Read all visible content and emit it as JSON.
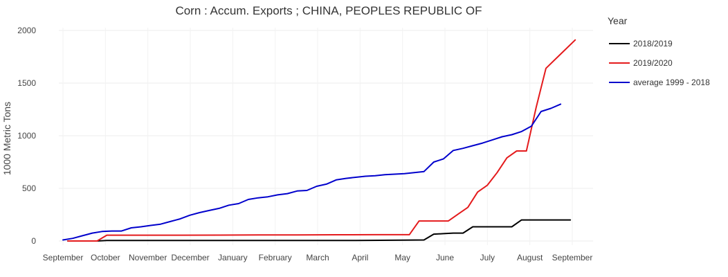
{
  "chart_data": {
    "type": "line",
    "title": "Corn :  Accum. Exports ;  CHINA, PEOPLES REPUBLIC OF",
    "xlabel": "",
    "ylabel": "1000 Metric Tons",
    "ylim": [
      0,
      2000
    ],
    "yticks": [
      0,
      500,
      1000,
      1500,
      2000
    ],
    "grid": true,
    "legend_title": "Year",
    "legend_position": "right",
    "x_tick_labels": [
      "September",
      "October",
      "November",
      "December",
      "January",
      "February",
      "March",
      "April",
      "May",
      "June",
      "July",
      "August",
      "September"
    ],
    "x_tick_index": [
      0,
      4.35,
      8.7,
      13.05,
      17.4,
      21.75,
      26.1,
      30.45,
      34.8,
      39.15,
      43.5,
      47.85,
      52.2
    ],
    "xlim": [
      0,
      52.2
    ],
    "series": [
      {
        "name": "2018/2019",
        "color": "#000000",
        "x": [
          0.5,
          3.5,
          4.5,
          8,
          10,
          15,
          20,
          25,
          30,
          35,
          37,
          38,
          39,
          40,
          41,
          42,
          43,
          44,
          45,
          46,
          47,
          48,
          49,
          50,
          51,
          52
        ],
        "y": [
          0,
          0,
          5,
          5,
          5,
          5,
          5,
          5,
          5,
          8,
          10,
          65,
          70,
          75,
          75,
          135,
          135,
          135,
          135,
          135,
          200,
          200,
          200,
          200,
          200,
          200
        ]
      },
      {
        "name": "2019/2020",
        "color": "#e41a1c",
        "x": [
          0.5,
          3.5,
          4.5,
          8,
          12,
          16,
          20,
          24,
          28,
          32,
          35.5,
          36.5,
          37.5,
          38.5,
          39.5,
          40.5,
          41.5,
          42.5,
          43.5,
          44.5,
          45.5,
          46.5,
          47.5,
          48.5,
          49.5,
          50.5,
          51.5,
          52.5
        ],
        "y": [
          0,
          0,
          55,
          55,
          55,
          56,
          57,
          58,
          59,
          60,
          60,
          190,
          190,
          190,
          190,
          255,
          320,
          465,
          530,
          650,
          790,
          855,
          855,
          1270,
          1640,
          1730,
          1820,
          1910
        ]
      },
      {
        "name": "average 1999 - 2018",
        "color": "#0000cc",
        "x": [
          0,
          1,
          2,
          3,
          4,
          5,
          6,
          7,
          8,
          9,
          10,
          11,
          12,
          13,
          14,
          15,
          16,
          17,
          18,
          19,
          20,
          21,
          22,
          23,
          24,
          25,
          26,
          27,
          28,
          29,
          30,
          31,
          32,
          33,
          34,
          35,
          36,
          37,
          38,
          39,
          40,
          41,
          42,
          43,
          44,
          45,
          46,
          47,
          48,
          49,
          50,
          51
        ],
        "y": [
          10,
          25,
          50,
          75,
          90,
          95,
          95,
          125,
          135,
          148,
          160,
          185,
          210,
          245,
          270,
          290,
          310,
          340,
          355,
          395,
          410,
          420,
          438,
          450,
          475,
          480,
          520,
          540,
          580,
          595,
          605,
          615,
          620,
          630,
          635,
          640,
          650,
          660,
          750,
          780,
          860,
          880,
          905,
          930,
          960,
          990,
          1010,
          1040,
          1090,
          1230,
          1260,
          1300
        ]
      }
    ]
  }
}
